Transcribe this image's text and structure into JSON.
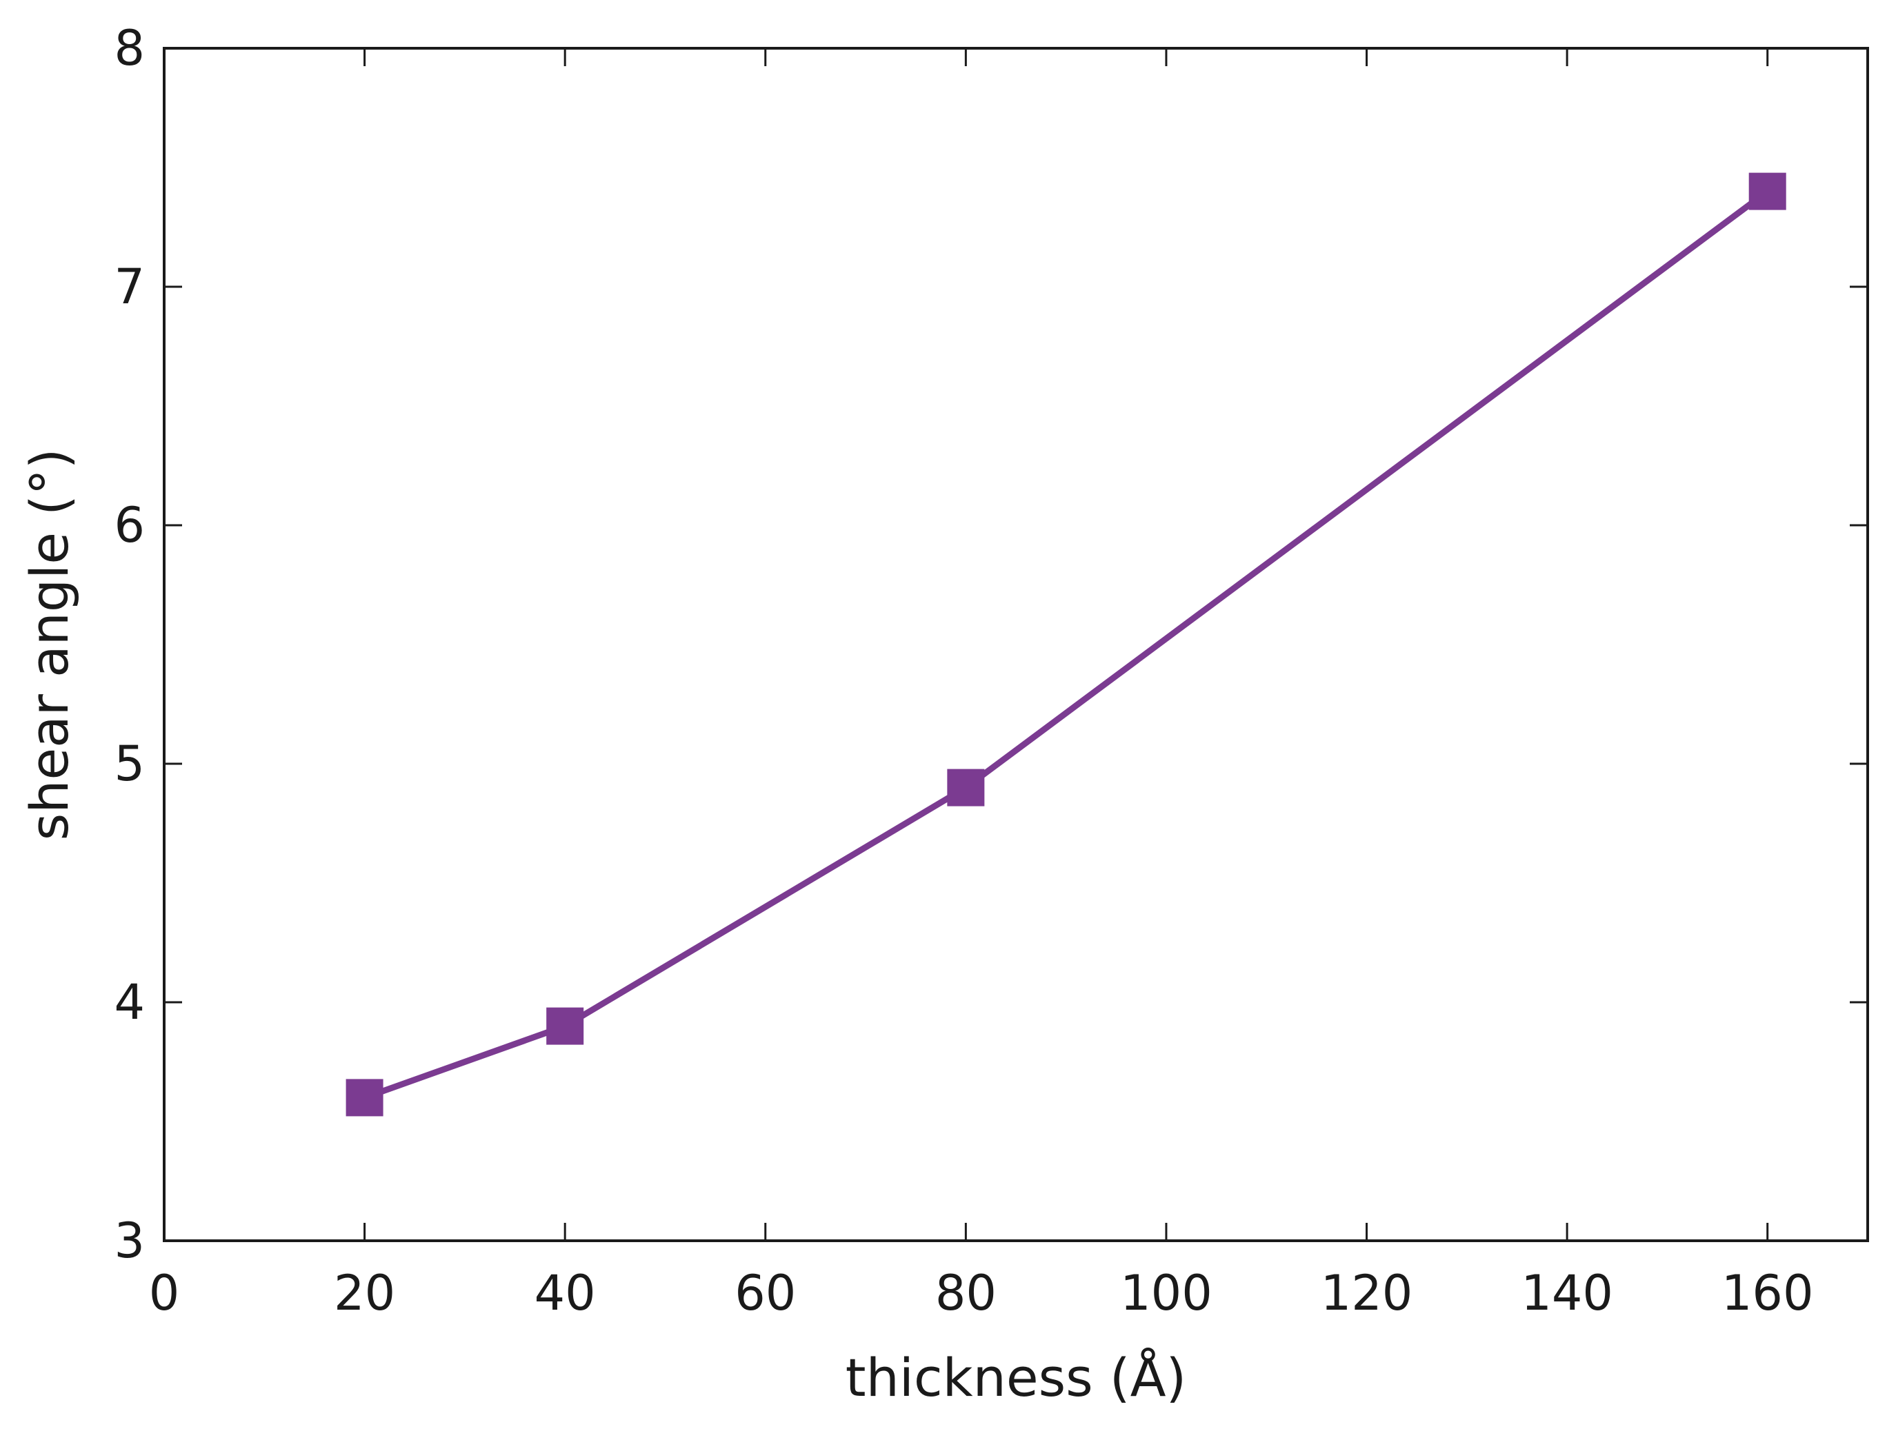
{
  "chart_data": {
    "type": "line",
    "title": "",
    "xlabel": "thickness (Å)",
    "ylabel": "shear angle (°)",
    "xlim": [
      0,
      170
    ],
    "ylim": [
      3,
      8
    ],
    "xticks": [
      0,
      20,
      40,
      60,
      80,
      100,
      120,
      140,
      160
    ],
    "yticks": [
      3,
      4,
      5,
      6,
      7,
      8
    ],
    "xtick_labels": [
      "0",
      "20",
      "40",
      "60",
      "80",
      "100",
      "120",
      "140",
      "160"
    ],
    "ytick_labels": [
      "3",
      "4",
      "5",
      "6",
      "7",
      "8"
    ],
    "grid": false,
    "legend": "none",
    "series": [
      {
        "marker": "square",
        "color": "#7b3b91",
        "x": [
          20,
          40,
          80,
          160
        ],
        "y": [
          3.6,
          3.9,
          4.9,
          7.4
        ]
      }
    ]
  }
}
